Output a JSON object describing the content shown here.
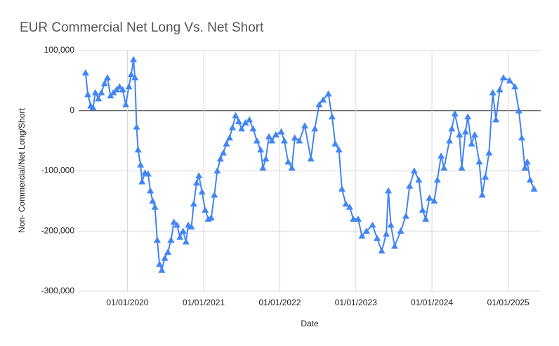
{
  "chart_data": {
    "type": "line",
    "title": "EUR Commercial Net Long Vs. Net Short",
    "x_label": "Date",
    "y_label": "Non- Commercial/Net Long/Short",
    "grid": true,
    "xlim": [
      "05/12/2019",
      "06/06/2025"
    ],
    "xticks": [
      "01/01/2020",
      "01/01/2021",
      "01/01/2022",
      "01/01/2023",
      "01/01/2024",
      "01/01/2025"
    ],
    "ylim": [
      -300000,
      100000
    ],
    "yticks": [
      {
        "value": -300000,
        "label": "-300,000"
      },
      {
        "value": -200000,
        "label": "-200,000"
      },
      {
        "value": -100000,
        "label": "-100,000"
      },
      0,
      {
        "value": 100000,
        "label": "100,000"
      }
    ],
    "x": [
      "06/14/2019",
      "06/25/2019",
      "07/09/2019",
      "07/20/2019",
      "07/31/2019",
      "08/15/2019",
      "08/29/2019",
      "09/13/2019",
      "09/27/2019",
      "10/12/2019",
      "10/26/2019",
      "11/10/2019",
      "11/24/2019",
      "12/09/2019",
      "12/24/2019",
      "01/08/2020",
      "01/19/2020",
      "01/30/2020",
      "02/06/2020",
      "02/14/2020",
      "02/21/2020",
      "03/04/2020",
      "03/11/2020",
      "03/25/2020",
      "04/09/2020",
      "04/20/2020",
      "05/01/2020",
      "05/12/2020",
      "05/23/2020",
      "06/03/2020",
      "06/14/2020",
      "06/28/2020",
      "07/13/2020",
      "07/28/2020",
      "08/11/2020",
      "08/26/2020",
      "09/09/2020",
      "09/24/2020",
      "10/08/2020",
      "10/19/2020",
      "11/03/2020",
      "11/14/2020",
      "11/28/2020",
      "12/09/2020",
      "12/24/2020",
      "01/08/2021",
      "01/23/2021",
      "02/06/2021",
      "02/21/2021",
      "03/07/2021",
      "03/22/2021",
      "04/05/2021",
      "04/20/2021",
      "05/05/2021",
      "05/19/2021",
      "06/03/2021",
      "06/18/2021",
      "07/02/2021",
      "07/20/2021",
      "08/08/2021",
      "08/26/2021",
      "09/13/2021",
      "10/01/2021",
      "10/12/2021",
      "10/26/2021",
      "11/10/2021",
      "11/24/2021",
      "12/13/2021",
      "01/08/2022",
      "01/23/2022",
      "02/10/2022",
      "02/28/2022",
      "03/14/2022",
      "04/05/2022",
      "05/01/2022",
      "05/30/2022",
      "06/18/2022",
      "07/09/2022",
      "07/28/2022",
      "08/22/2022",
      "09/09/2022",
      "09/24/2022",
      "10/12/2022",
      "10/26/2022",
      "11/14/2022",
      "12/02/2022",
      "12/20/2022",
      "01/12/2023",
      "01/30/2023",
      "02/21/2023",
      "03/22/2023",
      "04/13/2023",
      "05/05/2023",
      "05/27/2023",
      "06/06/2023",
      "06/18/2023",
      "07/06/2023",
      "08/04/2023",
      "08/29/2023",
      "09/16/2023",
      "10/08/2023",
      "10/30/2023",
      "11/17/2023",
      "12/02/2023",
      "12/20/2023",
      "01/12/2024",
      "01/27/2024",
      "02/14/2024",
      "02/28/2024",
      "03/25/2024",
      "04/05/2024",
      "04/20/2024",
      "05/12/2024",
      "05/23/2024",
      "06/10/2024",
      "06/21/2024",
      "07/09/2024",
      "07/24/2024",
      "08/15/2024",
      "08/29/2024",
      "09/13/2024",
      "10/01/2024",
      "10/19/2024",
      "11/03/2024",
      "11/21/2024",
      "12/09/2024",
      "01/08/2025",
      "02/02/2025",
      "02/21/2025",
      "03/07/2025",
      "03/22/2025",
      "04/02/2025",
      "04/16/2025",
      "05/05/2025"
    ],
    "series": [
      {
        "name": "Net Long/Short",
        "color": "#4285f4",
        "values": [
          63000,
          27000,
          8000,
          5000,
          30000,
          20000,
          30000,
          45000,
          55000,
          25000,
          30000,
          35000,
          40000,
          35000,
          10000,
          40000,
          60000,
          85000,
          55000,
          -27000,
          -65000,
          -90000,
          -118000,
          -103000,
          -105000,
          -133000,
          -150000,
          -160000,
          -215000,
          -255000,
          -265000,
          -245000,
          -235000,
          -215000,
          -185000,
          -190000,
          -210000,
          -200000,
          -218000,
          -190000,
          -193000,
          -155000,
          -120000,
          -108000,
          -135000,
          -165000,
          -180000,
          -178000,
          -140000,
          -100000,
          -80000,
          -70000,
          -55000,
          -45000,
          -28000,
          -8000,
          -18000,
          -30000,
          -20000,
          -15000,
          -30000,
          -50000,
          -65000,
          -95000,
          -80000,
          -43000,
          -50000,
          -40000,
          -35000,
          -50000,
          -85000,
          -95000,
          -45000,
          -50000,
          -25000,
          -80000,
          -30000,
          10000,
          18000,
          28000,
          -10000,
          -55000,
          -65000,
          -130000,
          -155000,
          -160000,
          -180000,
          -180000,
          -208000,
          -200000,
          -190000,
          -212000,
          -233000,
          -205000,
          -133000,
          -190000,
          -225000,
          -200000,
          -175000,
          -125000,
          -100000,
          -115000,
          -165000,
          -180000,
          -145000,
          -150000,
          -115000,
          -75000,
          -95000,
          -50000,
          -30000,
          -5000,
          -40000,
          -95000,
          -35000,
          -10000,
          -55000,
          -40000,
          -85000,
          -140000,
          -110000,
          -70000,
          30000,
          -15000,
          35000,
          55000,
          50000,
          40000,
          0,
          -45000,
          -95000,
          -85000,
          -115000,
          -130000
        ]
      }
    ]
  }
}
